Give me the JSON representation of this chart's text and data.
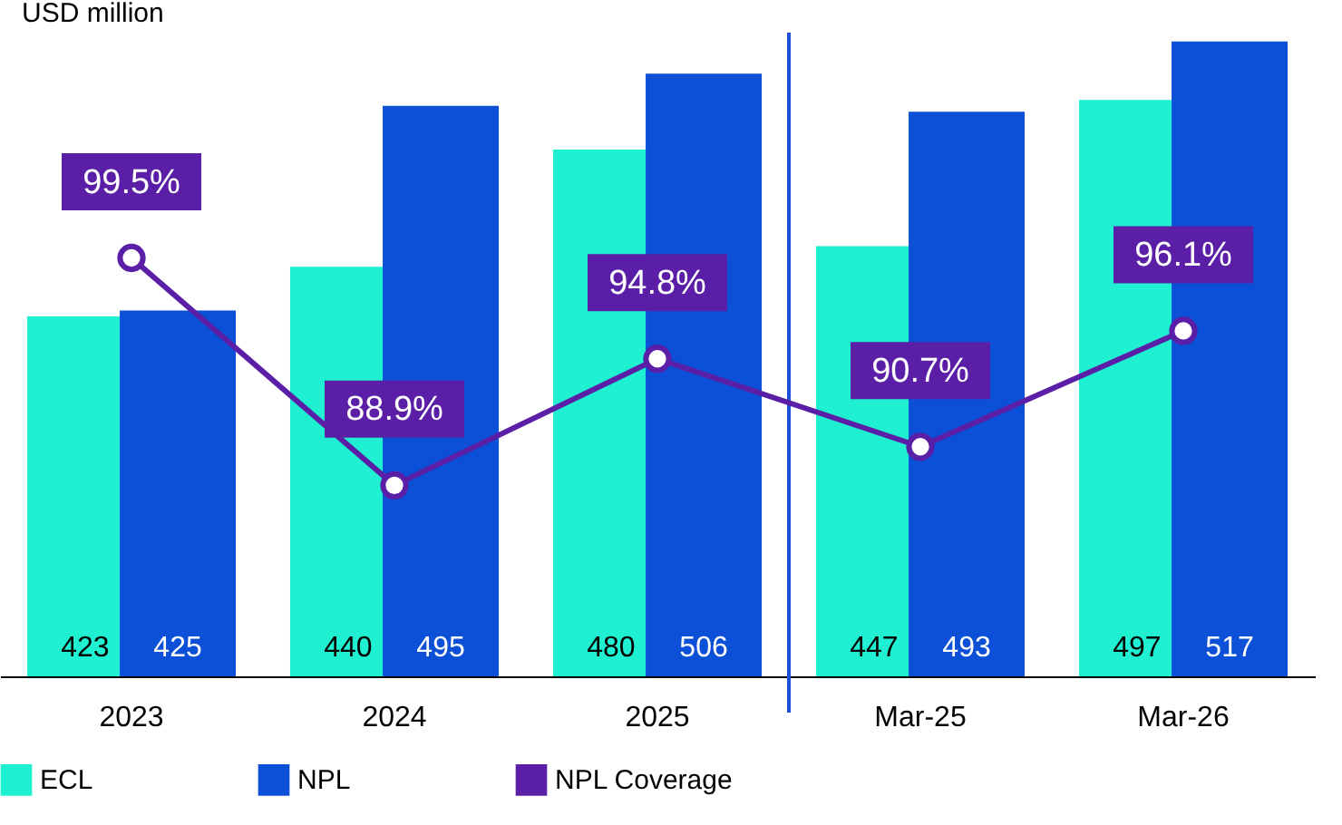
{
  "chart_data": {
    "type": "bar",
    "ylabel": "USD million",
    "categories": [
      "2023",
      "2024",
      "2025",
      "Mar-25",
      "Mar-26"
    ],
    "ylim": [
      300,
      520
    ],
    "tick_labels": "x",
    "data_labels": true,
    "legend": "bottom",
    "grid": false,
    "series": [
      {
        "name": "ECL",
        "color": "#1ff0d2",
        "values": [
          423,
          440,
          480,
          447,
          497
        ]
      },
      {
        "name": "NPL",
        "color": "#0b50d6",
        "values": [
          425,
          495,
          506,
          493,
          517
        ]
      },
      {
        "name": "NPL Coverage",
        "type": "line",
        "axis": "y2",
        "color": "#5a1fa6",
        "marker": "circle",
        "values": [
          99.5,
          88.9,
          94.8,
          90.7,
          96.1
        ],
        "value_labels": [
          "99.5%",
          "88.9%",
          "94.8%",
          "90.7%",
          "96.1%"
        ]
      }
    ],
    "y2lim": [
      80,
      110
    ],
    "ref_lines": [
      {
        "axis": "x",
        "value": "Mar-25",
        "color": "#1f4fd6"
      }
    ]
  }
}
